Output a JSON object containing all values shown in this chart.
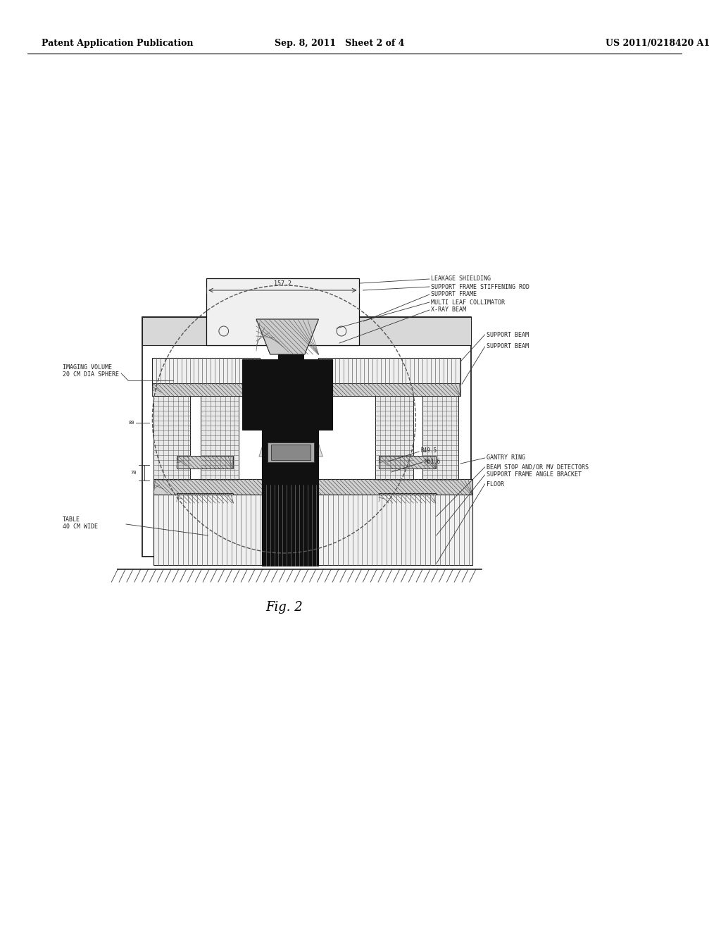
{
  "bg_color": "#ffffff",
  "header_left": "Patent Application Publication",
  "header_center": "Sep. 8, 2011   Sheet 2 of 4",
  "header_right": "US 2011/0218420 A1",
  "figure_label": "Fig. 2",
  "dim_label": "157.2",
  "label_fontsize": 6.0,
  "fig_label_fontsize": 13,
  "header_fontsize": 9
}
